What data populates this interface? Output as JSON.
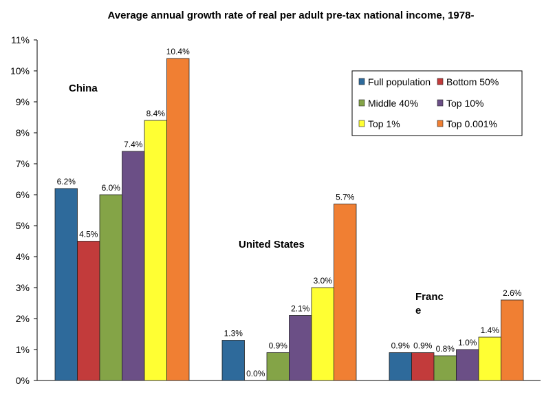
{
  "chart_data": {
    "type": "bar",
    "title": "Average annual growth rate of real per adult pre-tax national income, 1978-",
    "xlabel": "",
    "ylabel": "",
    "ylim": [
      0,
      11
    ],
    "y_ticks": [
      "0%",
      "1%",
      "2%",
      "3%",
      "4%",
      "5%",
      "6%",
      "7%",
      "8%",
      "9%",
      "10%",
      "11%"
    ],
    "categories": [
      "China",
      "United States",
      "Franc\ne"
    ],
    "series": [
      {
        "name": "Full population",
        "color": "#2e6a9b",
        "values": [
          6.2,
          1.3,
          0.9
        ],
        "labels": [
          "6.2%",
          "1.3%",
          "0.9%"
        ]
      },
      {
        "name": "Bottom 50%",
        "color": "#c23b3b",
        "values": [
          4.5,
          0.0,
          0.9
        ],
        "labels": [
          "4.5%",
          "0.0%",
          "0.9%"
        ]
      },
      {
        "name": "Middle 40%",
        "color": "#84a447",
        "values": [
          6.0,
          0.9,
          0.8
        ],
        "labels": [
          "6.0%",
          "0.9%",
          "0.8%"
        ]
      },
      {
        "name": "Top 10%",
        "color": "#6b4f86",
        "values": [
          7.4,
          2.1,
          1.0
        ],
        "labels": [
          "7.4%",
          "2.1%",
          "1.0%"
        ]
      },
      {
        "name": "Top 1%",
        "color": "#ffff33",
        "values": [
          8.4,
          3.0,
          1.4
        ],
        "labels": [
          "8.4%",
          "3.0%",
          "1.4%"
        ]
      },
      {
        "name": "Top 0.001%",
        "color": "#f07f33",
        "values": [
          10.4,
          5.7,
          2.6
        ],
        "labels": [
          "10.4%",
          "5.7%",
          "2.6%"
        ]
      }
    ],
    "grid": false,
    "legend_position": "top-right"
  }
}
